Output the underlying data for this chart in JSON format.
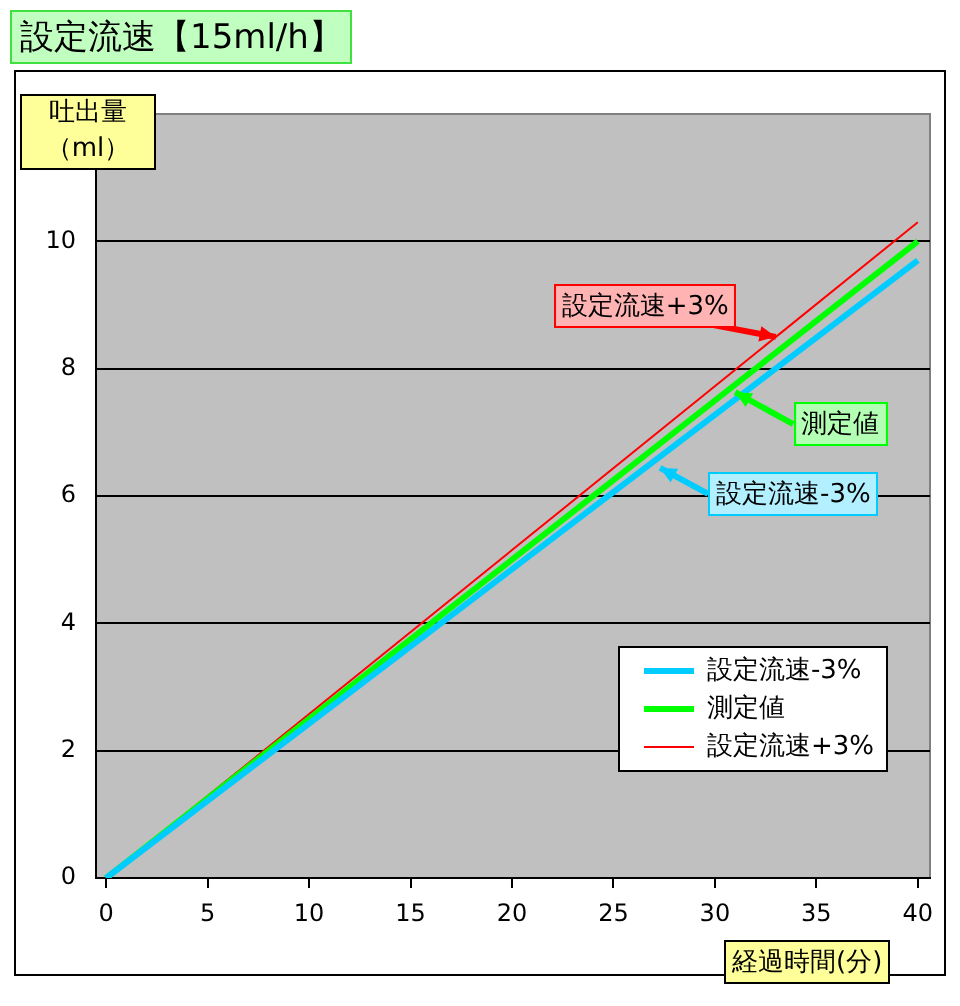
{
  "chart_data": {
    "type": "line",
    "title": "設定流速【15ml/h】",
    "xlabel": "経過時間(分)",
    "ylabel": "吐出量（ml）",
    "x": [
      0,
      40
    ],
    "series": [
      {
        "name": "設定流速-3%",
        "color": "#00ccff",
        "values": [
          0,
          9.7
        ]
      },
      {
        "name": "測定値",
        "color": "#00ff00",
        "values": [
          0,
          10.0
        ]
      },
      {
        "name": "設定流速+3%",
        "color": "#ff0000",
        "values": [
          0,
          10.3
        ]
      }
    ],
    "annotations": [
      {
        "text": "設定流速-3%",
        "x": 27.3,
        "y": 6.44
      },
      {
        "text": "測定値",
        "x": 31.0,
        "y": 7.63
      },
      {
        "text": "設定流速+3%",
        "x": 33.0,
        "y": 8.5
      }
    ],
    "xlim": [
      -0.5,
      40.6
    ],
    "xticks": [
      0,
      5,
      10,
      15,
      20,
      25,
      30,
      35,
      40
    ],
    "ylim": [
      0,
      12
    ],
    "yticks": [
      0,
      2,
      4,
      6,
      8,
      10
    ],
    "grid": "y",
    "legend": "bottom right",
    "marker": "none",
    "line_style": "solid"
  }
}
